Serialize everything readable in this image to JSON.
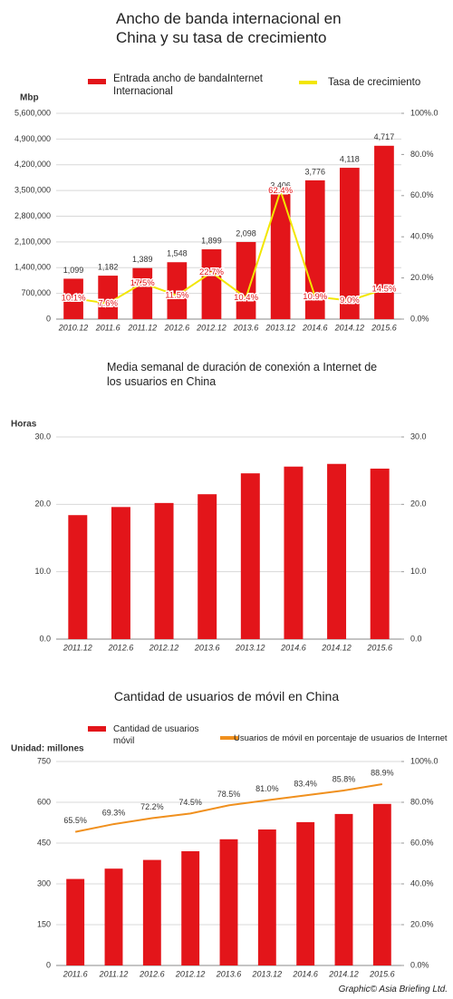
{
  "chart_data": [
    {
      "type": "bar",
      "title": "Ancho de banda internacional en China y su tasa de crecimiento",
      "y_label": "Mbp",
      "categories": [
        "2010.12",
        "2011.6",
        "2011.12",
        "2012.6",
        "2012.12",
        "2013.6",
        "2013.12",
        "2014.6",
        "2014.12",
        "2015.6"
      ],
      "series": [
        {
          "name": "Entrada ancho de bandaInternet Internacional",
          "type": "bar",
          "color": "#e3151a",
          "values": [
            1099000,
            1182000,
            1389000,
            1548000,
            1899000,
            2098000,
            3406000,
            3776000,
            4118000,
            4717000
          ],
          "value_labels": [
            "1,099",
            "1,182",
            "1,389",
            "1,548",
            "1,899",
            "2,098",
            "3,406",
            "3,776",
            "4,118",
            "4,717"
          ]
        },
        {
          "name": "Tasa de crecimiento",
          "type": "line",
          "color": "#f2e600",
          "axis": "y2",
          "values": [
            10.1,
            7.6,
            17.5,
            11.5,
            22.7,
            10.4,
            62.4,
            10.9,
            9.0,
            14.5
          ],
          "value_labels": [
            "10.1%",
            "7.6%",
            "17.5%",
            "11.5%",
            "22.7%",
            "10.4%",
            "62.4%",
            "10.9%",
            "9.0%",
            "14.5%"
          ]
        }
      ],
      "ylim": [
        0,
        5600000
      ],
      "yticks": [
        0,
        {
          "value": 700000,
          "label": "700,000"
        },
        {
          "value": 1400000,
          "label": "1,400,000"
        },
        {
          "value": 2100000,
          "label": "2,100,000"
        },
        {
          "value": 2800000,
          "label": "2,800,000"
        },
        {
          "value": 3500000,
          "label": "3,500,000"
        },
        {
          "value": 4200000,
          "label": "4,200,000"
        },
        {
          "value": 4900000,
          "label": "4,900,000"
        },
        {
          "value": 5600000,
          "label": "5,600,000"
        }
      ],
      "y2lim": [
        0,
        100
      ],
      "y2ticks": [
        {
          "value": 0,
          "label": "0.0%"
        },
        {
          "value": 20,
          "label": "20.0%"
        },
        {
          "value": 40,
          "label": "40.0%"
        },
        {
          "value": 60,
          "label": "60.0%"
        },
        {
          "value": 80,
          "label": "80.0%"
        },
        {
          "value": 100,
          "label": "100%.0"
        }
      ],
      "grid": true
    },
    {
      "type": "bar",
      "title": "Media semanal de duración de conexión a Internet de los usuarios en China",
      "y_label": "Horas",
      "categories": [
        "2011.12",
        "2012.6",
        "2012.12",
        "2013.6",
        "2013.12",
        "2014.6",
        "2014.12",
        "2015.6"
      ],
      "series": [
        {
          "type": "bar",
          "color": "#e3151a",
          "values": [
            18.4,
            19.6,
            20.2,
            21.5,
            24.6,
            25.6,
            26.0,
            25.3
          ]
        }
      ],
      "ylim": [
        0,
        30
      ],
      "yticks": [
        {
          "value": 0,
          "label": "0.0"
        },
        {
          "value": 10,
          "label": "10.0"
        },
        {
          "value": 20,
          "label": "20.0"
        },
        {
          "value": 30,
          "label": "30.0"
        }
      ],
      "y2lim": [
        0,
        30
      ],
      "y2ticks": [
        {
          "value": 0,
          "label": "0.0"
        },
        {
          "value": 10,
          "label": "10.0"
        },
        {
          "value": 20,
          "label": "20.0"
        },
        {
          "value": 30,
          "label": "30.0"
        }
      ],
      "grid": true
    },
    {
      "type": "bar",
      "title": "Cantidad de usuarios de móvil en China",
      "y_label": "Unidad: millones",
      "categories": [
        "2011.6",
        "2011.12",
        "2012.6",
        "2012.12",
        "2013.6",
        "2013.12",
        "2014.6",
        "2014.12",
        "2015.6"
      ],
      "series": [
        {
          "name": "Cantidad de usuarios móvil",
          "type": "bar",
          "color": "#e3151a",
          "values": [
            318,
            356,
            388,
            420,
            464,
            500,
            527,
            557,
            594
          ]
        },
        {
          "name": "Usuarios de móvil en porcentaje de usuarios de Internet",
          "type": "line",
          "color": "#f0901e",
          "axis": "y2",
          "values": [
            65.5,
            69.3,
            72.2,
            74.5,
            78.5,
            81.0,
            83.4,
            85.8,
            88.9
          ],
          "value_labels": [
            "65.5%",
            "69.3%",
            "72.2%",
            "74.5%",
            "78.5%",
            "81.0%",
            "83.4%",
            "85.8%",
            "88.9%"
          ]
        }
      ],
      "ylim": [
        0,
        750
      ],
      "yticks": [
        0,
        150,
        300,
        450,
        600,
        750
      ],
      "y2lim": [
        0,
        100
      ],
      "y2ticks": [
        {
          "value": 0,
          "label": "0.0%"
        },
        {
          "value": 20,
          "label": "20.0%"
        },
        {
          "value": 40,
          "label": "40.0%"
        },
        {
          "value": 60,
          "label": "60.0%"
        },
        {
          "value": 80,
          "label": "80.0%"
        },
        {
          "value": 100,
          "label": "100%.0"
        }
      ],
      "grid": true
    }
  ],
  "footer": "Graphic© Asia Briefing Ltd."
}
